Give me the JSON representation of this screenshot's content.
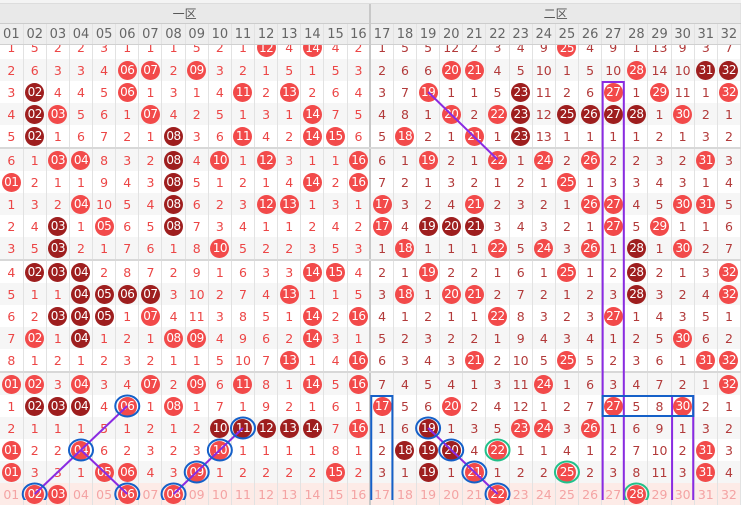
{
  "regions": [
    "一区",
    "二区"
  ],
  "columns": [
    "01",
    "02",
    "03",
    "04",
    "05",
    "06",
    "07",
    "08",
    "09",
    "10",
    "11",
    "12",
    "13",
    "14",
    "15",
    "16",
    "17",
    "18",
    "19",
    "20",
    "21",
    "22",
    "23",
    "24",
    "25",
    "26",
    "27",
    "28",
    "29",
    "30",
    "31",
    "32"
  ],
  "legend": {
    "r": "red ball = drawn number",
    "d": "dark ball = consecutive draw"
  },
  "colors": {
    "ball_red": "#f24a4a",
    "ball_dark": "#9e1e1e",
    "annotation_blue": "#1560c8",
    "annotation_green": "#22c08a",
    "annotation_purple": "#8a2be2"
  },
  "rows": [
    "1 5 2 2 3 1 1 1 5 2 1 r12 4 r14 4 2 1 5 5 12 2 3 4 9 r25 4 9 1 13 9 3 7",
    "2 6 3 3 4 r06 r07 2 r09 3 2 1 5 1 5 3 2 6 6 r20 r21 4 5 10 1 5 10 r28 14 10 d31 d32",
    "3 d02 4 4 5 r06 1 3 1 4 r11 2 r13 2 6 4 3 7 r19 1 1 5 d23 11 2 6 r27 1 r29 11 1 r32",
    "4 d02 r03 5 6 1 r07 4 2 5 1 3 1 r14 7 5 4 8 1 r20 2 r22 d23 12 d25 d26 d27 d28 1 r30 2 1",
    "5 d02 1 6 7 2 1 d08 3 6 r11 4 2 r14 r15 6 5 r18 2 1 r21 1 d23 13 1 1 1 1 2 1 3 2",
    "6 1 r03 r04 8 3 2 d08 4 r10 1 r12 3 1 1 r16 6 1 r19 2 1 r22 1 r24 2 r26 2 2 3 2 r31 3",
    "r01 2 1 1 9 4 3 d08 5 1 2 1 4 r14 2 r16 7 2 1 3 2 1 2 1 r25 1 3 3 4 3 1 4",
    "1 3 2 r04 10 5 4 d08 6 2 3 r12 r13 1 3 1 r17 3 2 4 r21 2 3 2 1 r26 r27 4 5 r30 r31 5",
    "2 4 d03 1 r05 6 5 d08 7 3 4 1 1 2 4 2 r17 4 d19 d20 d21 3 4 3 2 1 r27 5 r29 1 1 6",
    "3 5 d03 2 1 7 6 1 8 r10 5 2 2 3 5 3 1 r18 1 1 1 r22 5 r24 3 r26 1 d28 1 r30 2 7",
    "4 d02 d03 d04 2 8 7 2 9 1 6 3 3 r14 r15 4 2 1 r19 2 2 1 6 1 r25 1 2 d28 2 1 3 r32",
    "5 1 1 d04 d05 d06 d07 3 10 2 7 4 r13 1 1 5 3 r18 1 r20 r21 2 7 2 1 2 3 d28 3 2 4 r32",
    "6 2 d03 d04 d05 1 r07 4 11 3 8 5 1 r14 2 r16 4 1 2 1 1 r22 8 3 2 3 r27 1 4 3 5 1",
    "7 r02 1 d04 1 2 1 r08 r09 4 9 6 2 r14 3 1 5 2 3 2 2 1 9 4 3 4 1 2 5 r30 6 2",
    "8 1 2 1 2 3 2 1 1 5 10 7 r13 1 4 r16 6 3 4 3 r21 2 10 5 r25 5 2 3 6 1 r31 r32",
    "r01 r02 3 r04 3 4 r07 2 r09 6 r11 8 1 r14 5 r16 7 4 5 4 1 3 11 r24 1 6 3 4 7 2 1 r32",
    "1 d02 d03 d04 4 r06 1 r08 1 7 1 9 2 1 6 1 r17 5 6 r20 2 4 12 1 2 7 r27 5 8 r30 2 1",
    "2 1 1 1 5 1 2 1 2 d10 d11 d12 d13 d14 7 r16 1 6 d19 1 3 5 r23 r24 3 r26 1 6 9 1 3 2",
    "r01 2 2 r04 6 2 3 2 3 r10 1 1 1 1 8 1 2 d18 d19 d20 4 r22 1 1 4 1 2 7 10 2 r31 3",
    "r01 3 3 1 r05 r06 4 3 r09 1 2 2 2 2 r15 2 3 1 d19 1 r21 1 2 2 r25 2 3 8 11 3 r31 4"
  ],
  "footer": "01 r02 r03 04 05 r06 07 r08 09 10 11 12 13 14 15 16 17 18 19 20 21 r22 23 24 25 26 27 r28 29 30 31 32",
  "annotations": {
    "blue_circles": [
      [
        16,
        6
      ],
      [
        18,
        4
      ],
      [
        20,
        2
      ],
      [
        20,
        6
      ],
      [
        20,
        8
      ],
      [
        19,
        9
      ],
      [
        18,
        10
      ],
      [
        17,
        11
      ],
      [
        17,
        19
      ],
      [
        18,
        20
      ],
      [
        19,
        21
      ],
      [
        20,
        22
      ]
    ],
    "green_circles": [
      [
        18,
        22
      ],
      [
        19,
        25
      ],
      [
        20,
        28
      ]
    ],
    "purple_lines": [
      [
        [
          2,
          19
        ],
        [
          5,
          22
        ]
      ],
      [
        [
          20,
          2
        ],
        [
          16,
          6
        ]
      ],
      [
        [
          18,
          4
        ],
        [
          20,
          6
        ]
      ],
      [
        [
          20,
          8
        ],
        [
          17,
          11
        ]
      ],
      [
        [
          17,
          19
        ],
        [
          20,
          22
        ]
      ]
    ],
    "purple_boxes": [
      [
        [
          2,
          27
        ],
        [
          20,
          27
        ]
      ],
      [
        [
          16,
          30
        ],
        [
          20,
          30
        ]
      ]
    ],
    "blue_boxes": [
      [
        [
          16,
          17
        ],
        [
          20,
          17
        ]
      ],
      [
        [
          16,
          27
        ],
        [
          16,
          30
        ]
      ]
    ]
  }
}
